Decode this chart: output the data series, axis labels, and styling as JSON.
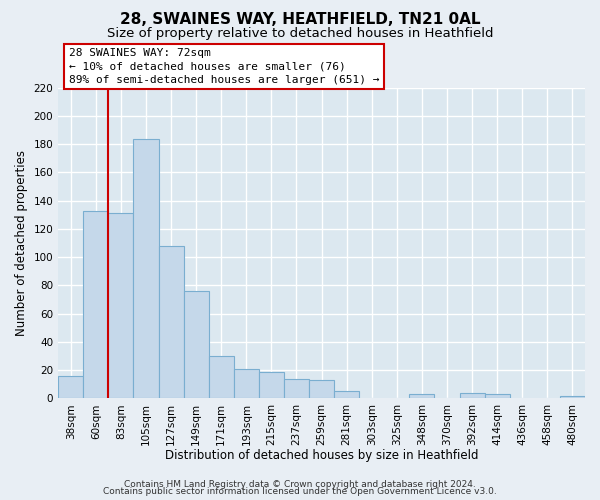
{
  "title": "28, SWAINES WAY, HEATHFIELD, TN21 0AL",
  "subtitle": "Size of property relative to detached houses in Heathfield",
  "xlabel": "Distribution of detached houses by size in Heathfield",
  "ylabel": "Number of detached properties",
  "bar_labels": [
    "38sqm",
    "60sqm",
    "83sqm",
    "105sqm",
    "127sqm",
    "149sqm",
    "171sqm",
    "193sqm",
    "215sqm",
    "237sqm",
    "259sqm",
    "281sqm",
    "303sqm",
    "325sqm",
    "348sqm",
    "370sqm",
    "392sqm",
    "414sqm",
    "436sqm",
    "458sqm",
    "480sqm"
  ],
  "bar_values": [
    16,
    133,
    131,
    184,
    108,
    76,
    30,
    21,
    19,
    14,
    13,
    5,
    0,
    0,
    3,
    0,
    4,
    3,
    0,
    0,
    2
  ],
  "bar_color": "#c5d8ea",
  "bar_edge_color": "#7aaed0",
  "vline_x": 1.5,
  "vline_color": "#cc0000",
  "ylim": [
    0,
    220
  ],
  "yticks": [
    0,
    20,
    40,
    60,
    80,
    100,
    120,
    140,
    160,
    180,
    200,
    220
  ],
  "annotation_box_text": "28 SWAINES WAY: 72sqm\n← 10% of detached houses are smaller (76)\n89% of semi-detached houses are larger (651) →",
  "footer_line1": "Contains HM Land Registry data © Crown copyright and database right 2024.",
  "footer_line2": "Contains public sector information licensed under the Open Government Licence v3.0.",
  "background_color": "#e8eef4",
  "plot_bg_color": "#dce8f0",
  "grid_color": "#ffffff",
  "title_fontsize": 11,
  "subtitle_fontsize": 9.5,
  "axis_label_fontsize": 8.5,
  "tick_fontsize": 7.5,
  "footer_fontsize": 6.5,
  "annot_fontsize": 8
}
